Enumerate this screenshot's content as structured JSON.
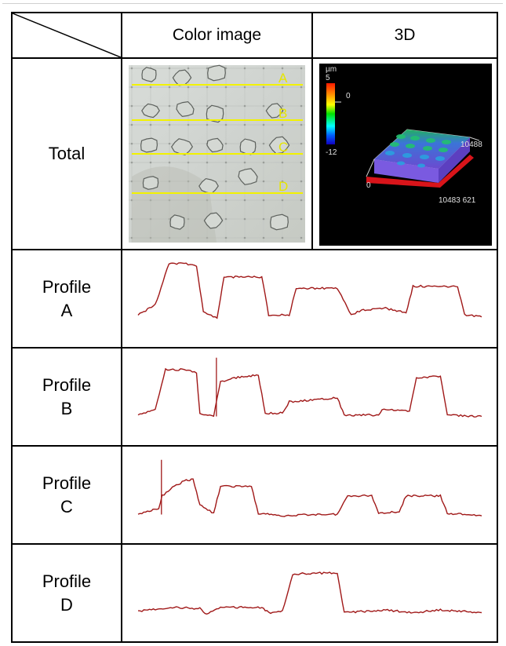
{
  "header": {
    "color_image": "Color image",
    "three_d": "3D"
  },
  "rows": [
    {
      "label": "Total"
    },
    {
      "label_line1": "Profile",
      "label_line2": "A"
    },
    {
      "label_line1": "Profile",
      "label_line2": "B"
    },
    {
      "label_line1": "Profile",
      "label_line2": "C"
    },
    {
      "label_line1": "Profile",
      "label_line2": "D"
    }
  ],
  "scan_lines": [
    "A",
    "B",
    "C",
    "D"
  ],
  "colorbar": {
    "unit": "µm",
    "max": "5",
    "mid": "0",
    "min": "-12"
  },
  "axis_labels": {
    "right": "10488",
    "origin": "0",
    "bottom": "10483 621"
  },
  "colors": {
    "profile": "#a01818",
    "scan_line": "#f2f200",
    "surface": "#6a4fd0",
    "edge": "#cc1010"
  },
  "profiles": {
    "A": [
      [
        0,
        0.15
      ],
      [
        0.05,
        0.3
      ],
      [
        0.09,
        0.92
      ],
      [
        0.14,
        0.92
      ],
      [
        0.17,
        0.88
      ],
      [
        0.19,
        0.2
      ],
      [
        0.23,
        0.1
      ],
      [
        0.25,
        0.72
      ],
      [
        0.36,
        0.72
      ],
      [
        0.38,
        0.15
      ],
      [
        0.44,
        0.15
      ],
      [
        0.46,
        0.55
      ],
      [
        0.58,
        0.55
      ],
      [
        0.62,
        0.15
      ],
      [
        0.65,
        0.22
      ],
      [
        0.72,
        0.25
      ],
      [
        0.78,
        0.18
      ],
      [
        0.8,
        0.58
      ],
      [
        0.93,
        0.58
      ],
      [
        0.95,
        0.15
      ],
      [
        1,
        0.12
      ]
    ],
    "B": [
      [
        0,
        0.12
      ],
      [
        0.05,
        0.2
      ],
      [
        0.08,
        0.8
      ],
      [
        0.14,
        0.8
      ],
      [
        0.17,
        0.75
      ],
      [
        0.18,
        0.15
      ],
      [
        0.22,
        0.1
      ],
      [
        0.24,
        0.62
      ],
      [
        0.28,
        0.68
      ],
      [
        0.35,
        0.72
      ],
      [
        0.37,
        0.15
      ],
      [
        0.42,
        0.15
      ],
      [
        0.44,
        0.32
      ],
      [
        0.58,
        0.38
      ],
      [
        0.6,
        0.12
      ],
      [
        0.7,
        0.12
      ],
      [
        0.71,
        0.2
      ],
      [
        0.79,
        0.18
      ],
      [
        0.81,
        0.68
      ],
      [
        0.88,
        0.7
      ],
      [
        0.9,
        0.12
      ],
      [
        1,
        0.1
      ]
    ],
    "C": [
      [
        0,
        0.1
      ],
      [
        0.06,
        0.2
      ],
      [
        0.07,
        0.38
      ],
      [
        0.1,
        0.5
      ],
      [
        0.14,
        0.62
      ],
      [
        0.16,
        0.62
      ],
      [
        0.18,
        0.25
      ],
      [
        0.22,
        0.12
      ],
      [
        0.24,
        0.52
      ],
      [
        0.33,
        0.52
      ],
      [
        0.35,
        0.12
      ],
      [
        0.42,
        0.08
      ],
      [
        0.5,
        0.1
      ],
      [
        0.58,
        0.1
      ],
      [
        0.61,
        0.38
      ],
      [
        0.68,
        0.38
      ],
      [
        0.7,
        0.12
      ],
      [
        0.76,
        0.14
      ],
      [
        0.78,
        0.38
      ],
      [
        0.88,
        0.38
      ],
      [
        0.9,
        0.12
      ],
      [
        1,
        0.08
      ]
    ],
    "D": [
      [
        0,
        0.12
      ],
      [
        0.1,
        0.18
      ],
      [
        0.18,
        0.16
      ],
      [
        0.2,
        0.08
      ],
      [
        0.24,
        0.18
      ],
      [
        0.36,
        0.18
      ],
      [
        0.38,
        0.1
      ],
      [
        0.42,
        0.12
      ],
      [
        0.45,
        0.68
      ],
      [
        0.58,
        0.7
      ],
      [
        0.6,
        0.1
      ],
      [
        0.72,
        0.14
      ],
      [
        0.8,
        0.1
      ],
      [
        0.88,
        0.14
      ],
      [
        1,
        0.1
      ]
    ]
  },
  "spikes": {
    "A": [],
    "B": [
      [
        0.228,
        0.98
      ]
    ],
    "C": [
      [
        0.068,
        0.92
      ]
    ],
    "D": []
  }
}
